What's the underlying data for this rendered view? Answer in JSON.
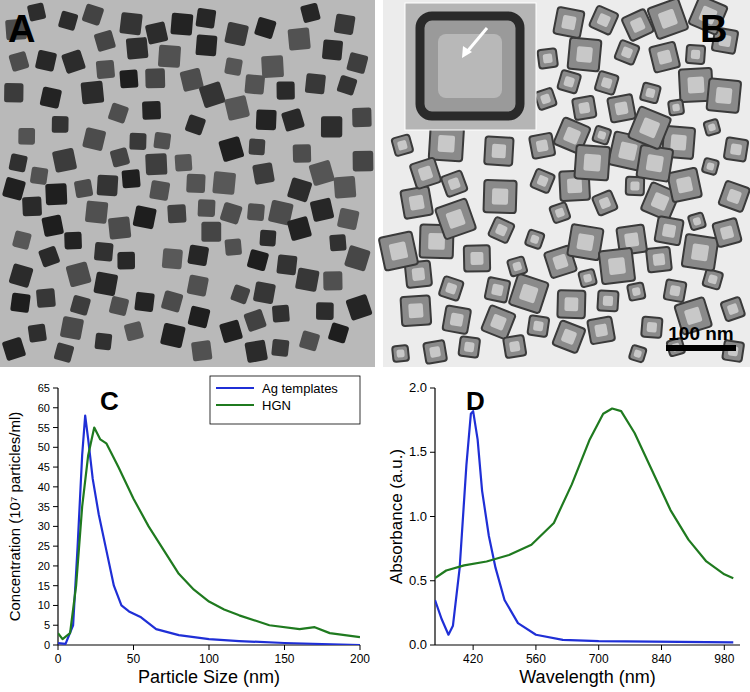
{
  "images": [
    {
      "title": "A"
    },
    {
      "title": "B",
      "scale_bar": "100 nm"
    }
  ],
  "chart_data": [
    {
      "type": "line",
      "title": "C",
      "xlabel": "Particle Size (nm)",
      "ylabel": "Concentration (10⁷ particles/ml)",
      "xlim": [
        0,
        200
      ],
      "xticks": [
        0,
        50,
        100,
        150,
        200
      ],
      "ylim": [
        0,
        65
      ],
      "yticks": [
        0,
        5,
        10,
        15,
        20,
        25,
        30,
        35,
        40,
        45,
        50,
        55,
        60,
        65
      ],
      "legend": "upper right",
      "series": [
        {
          "name": "Ag templates",
          "color": "#1f2fd6",
          "x": [
            0,
            5,
            10,
            13,
            16,
            18,
            20,
            23,
            27,
            32,
            37,
            42,
            47,
            55,
            65,
            80,
            100,
            120,
            150,
            200
          ],
          "values": [
            0.5,
            0.3,
            5,
            25,
            48,
            58,
            52,
            42,
            33,
            24,
            15,
            10,
            8.5,
            7,
            4,
            2.5,
            1.5,
            1,
            0.5,
            0
          ]
        },
        {
          "name": "HGN",
          "color": "#1f7a1f",
          "x": [
            0,
            3,
            8,
            12,
            16,
            20,
            24,
            28,
            32,
            40,
            50,
            60,
            70,
            80,
            90,
            100,
            110,
            120,
            140,
            160,
            170,
            180,
            200
          ],
          "values": [
            3,
            1.5,
            3,
            15,
            35,
            48,
            55,
            52,
            51,
            45,
            37,
            30,
            24,
            18,
            14,
            11,
            9,
            7.5,
            5,
            4,
            4.5,
            3,
            2
          ]
        }
      ]
    },
    {
      "type": "line",
      "title": "D",
      "xlabel": "Wavelength (nm)",
      "ylabel": "Absorbance (a.u.)",
      "xlim": [
        335,
        1015
      ],
      "xticks": [
        420,
        560,
        700,
        840,
        980
      ],
      "ylim": [
        0,
        2
      ],
      "yticks": [
        {
          "value": 0,
          "label": "0.0"
        },
        {
          "value": 0.5,
          "label": "0.5"
        },
        {
          "value": 1,
          "label": "1.0"
        },
        {
          "value": 1.5,
          "label": "1.5"
        },
        {
          "value": 2,
          "label": "2.0"
        }
      ],
      "series": [
        {
          "color": "#1f2fd6",
          "x": [
            335,
            350,
            365,
            375,
            390,
            405,
            415,
            420,
            430,
            440,
            455,
            470,
            490,
            520,
            560,
            620,
            700,
            1000
          ],
          "values": [
            0.35,
            0.2,
            0.08,
            0.15,
            0.6,
            1.4,
            1.8,
            1.82,
            1.6,
            1.2,
            0.85,
            0.6,
            0.35,
            0.17,
            0.08,
            0.04,
            0.03,
            0.02
          ]
        },
        {
          "color": "#1f7a1f",
          "x": [
            335,
            360,
            400,
            450,
            500,
            550,
            600,
            640,
            680,
            710,
            730,
            750,
            780,
            820,
            860,
            900,
            940,
            980,
            1000
          ],
          "values": [
            0.52,
            0.58,
            0.62,
            0.65,
            0.7,
            0.78,
            0.95,
            1.25,
            1.6,
            1.8,
            1.84,
            1.82,
            1.65,
            1.35,
            1.05,
            0.82,
            0.65,
            0.55,
            0.52
          ]
        }
      ]
    }
  ]
}
